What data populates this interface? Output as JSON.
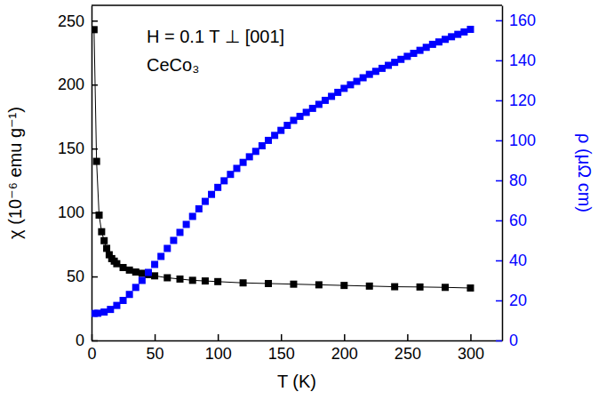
{
  "chart_data": {
    "type": "scatter",
    "annotations": [
      "H = 0.1 T ⊥ [001]",
      "CeCo₃"
    ],
    "xlabel": "T (K)",
    "ylabel": "χ (10⁻⁶ emu g⁻¹)",
    "y2label": "ρ (μΩ cm)",
    "xlim": [
      0,
      325
    ],
    "xticks": [
      0,
      50,
      100,
      150,
      200,
      250,
      300
    ],
    "ylim": [
      0,
      262
    ],
    "yticks": [
      0,
      50,
      100,
      150,
      200,
      250
    ],
    "y2lim": [
      0,
      167.5
    ],
    "y2ticks": [
      0,
      20,
      40,
      60,
      80,
      100,
      120,
      140,
      160
    ],
    "series": [
      {
        "color": "#000000",
        "marker": "square",
        "line_style": "solid",
        "x": [
          2,
          4,
          6,
          8,
          10,
          12,
          14,
          16,
          18,
          20,
          25,
          30,
          35,
          40,
          45,
          50,
          60,
          70,
          80,
          90,
          100,
          120,
          140,
          160,
          180,
          200,
          220,
          240,
          260,
          280,
          300
        ],
        "values": [
          243,
          140,
          98,
          85,
          78,
          72,
          67,
          64,
          62,
          60,
          57,
          55,
          53.5,
          52.5,
          51.5,
          50.5,
          49,
          48,
          47,
          46.5,
          46,
          45,
          44.5,
          44,
          43.5,
          43,
          42.5,
          42,
          41.8,
          41.5,
          41
        ]
      },
      {
        "color": "#0000ff",
        "marker": "square",
        "line_style": "none",
        "axis": "y2",
        "x": [
          2,
          5,
          10,
          15,
          20,
          25,
          30,
          35,
          40,
          45,
          50,
          55,
          60,
          65,
          70,
          75,
          80,
          85,
          90,
          95,
          100,
          105,
          110,
          115,
          120,
          125,
          130,
          135,
          140,
          145,
          150,
          155,
          160,
          165,
          170,
          175,
          180,
          185,
          190,
          195,
          200,
          205,
          210,
          215,
          220,
          225,
          230,
          235,
          240,
          245,
          250,
          255,
          260,
          265,
          270,
          275,
          280,
          285,
          290,
          295,
          300
        ],
        "values": [
          13.5,
          13.6,
          14.2,
          15.5,
          17.5,
          20,
          23,
          26.5,
          30,
          34,
          38,
          42,
          46,
          50,
          54,
          58,
          62,
          65.8,
          69.5,
          73,
          76.5,
          79.8,
          83,
          86,
          89,
          91.8,
          94.5,
          97.3,
          100,
          102.5,
          105,
          107.5,
          110,
          112,
          114,
          116,
          118,
          120,
          122,
          124,
          126,
          127.8,
          129.5,
          131.3,
          133,
          134.5,
          136,
          137.5,
          139,
          140.5,
          142,
          143.5,
          145,
          146.5,
          148,
          149.2,
          150.5,
          151.8,
          153,
          154.2,
          155.5
        ]
      }
    ]
  }
}
